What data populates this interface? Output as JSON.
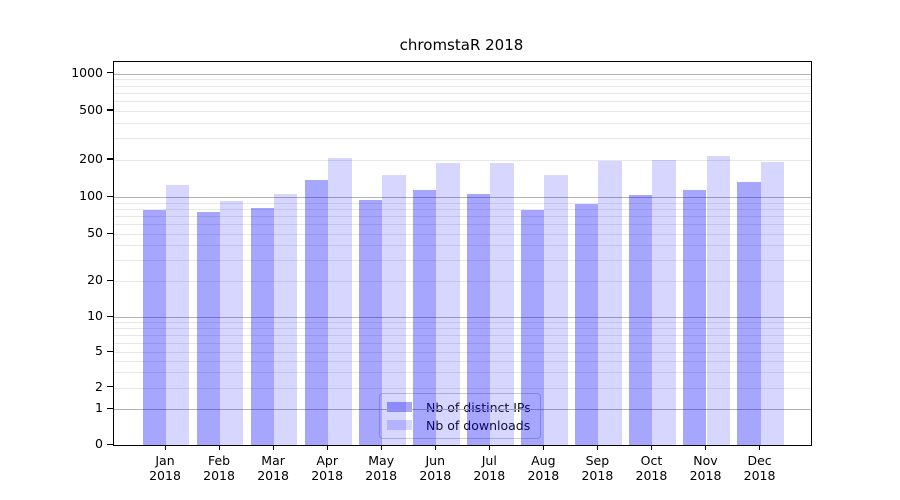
{
  "title": "chromstaR 2018",
  "chart_data": {
    "type": "bar",
    "title": "chromstaR 2018",
    "categories": [
      "Jan",
      "Feb",
      "Mar",
      "Apr",
      "May",
      "Jun",
      "Jul",
      "Aug",
      "Sep",
      "Oct",
      "Nov",
      "Dec"
    ],
    "category_year_line": "2018",
    "series": [
      {
        "name": "Nb of distinct IPs",
        "color": "rgba(0,0,255,0.35)",
        "values": [
          79,
          75,
          81,
          138,
          94,
          115,
          106,
          79,
          87,
          104,
          113,
          133
        ]
      },
      {
        "name": "Nb of downloads",
        "color": "rgba(0,0,255,0.16)",
        "values": [
          125,
          93,
          105,
          208,
          150,
          187,
          187,
          150,
          196,
          200,
          214,
          193
        ]
      }
    ],
    "y_axis": {
      "scale": "symlog",
      "ticks": [
        0,
        1,
        2,
        5,
        10,
        20,
        50,
        100,
        200,
        500,
        1000
      ],
      "major_gridlines": [
        1,
        10,
        100,
        1000
      ],
      "top_value": 1250
    },
    "x_axis": {
      "second_line": "2018"
    },
    "legend_position": "lower center",
    "grid": true,
    "colors": {
      "bar_distinct_ips": "rgba(0,0,255,0.35)",
      "bar_downloads": "rgba(0,0,255,0.16)",
      "major_grid": "#b3b3b3",
      "minor_grid": "#e7e7e7",
      "spine": "#000000",
      "text": "#000000"
    }
  }
}
